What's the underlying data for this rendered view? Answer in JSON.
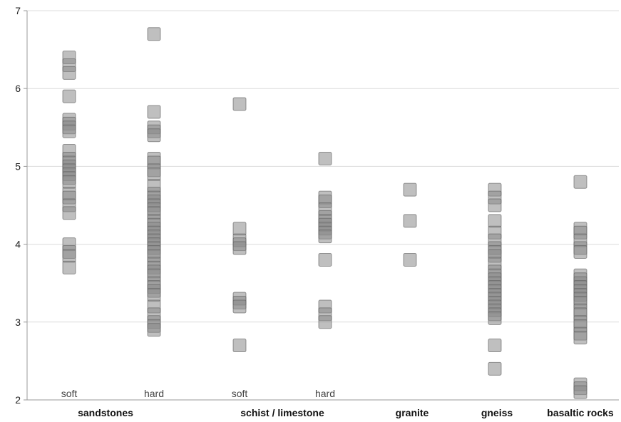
{
  "chart_data": {
    "type": "scatter",
    "ylim": [
      2,
      7
    ],
    "yticks": [
      "2",
      "3",
      "4",
      "5",
      "6",
      "7"
    ],
    "grid": "horizontal",
    "legend": "none",
    "colors": {
      "marker_fill": "#8a8a8a",
      "marker_stroke": "#5a5a5a",
      "grid": "#dcdcdc",
      "axis": "#9a9a9a"
    },
    "categories": [
      {
        "sub_label": "soft",
        "y": [
          6.4,
          6.3,
          6.2,
          5.9,
          5.6,
          5.55,
          5.5,
          5.45,
          5.2,
          5.1,
          5.05,
          5.0,
          4.95,
          4.9,
          4.85,
          4.8,
          4.65,
          4.6,
          4.5,
          4.4,
          4.0,
          3.9,
          3.85,
          3.7
        ]
      },
      {
        "sub_label": "hard",
        "y": [
          6.7,
          5.7,
          5.5,
          5.45,
          5.4,
          5.1,
          5.05,
          4.95,
          4.9,
          4.75,
          4.65,
          4.6,
          4.55,
          4.5,
          4.45,
          4.4,
          4.3,
          4.25,
          4.2,
          4.15,
          4.1,
          4.05,
          4.0,
          3.95,
          3.9,
          3.85,
          3.75,
          3.7,
          3.65,
          3.6,
          3.5,
          3.45,
          3.4,
          3.35,
          3.2,
          3.1,
          3.0,
          2.95,
          2.9
        ]
      },
      {
        "sub_label": "soft",
        "y": [
          5.8,
          4.2,
          4.05,
          4.0,
          3.95,
          3.3,
          3.25,
          3.2,
          2.7
        ]
      },
      {
        "sub_label": "hard",
        "y": [
          5.1,
          4.6,
          4.55,
          4.45,
          4.35,
          4.3,
          4.25,
          4.2,
          4.15,
          4.1,
          3.8,
          3.2,
          3.1,
          3.0
        ]
      },
      {
        "sub_label": "",
        "y": [
          4.7,
          4.3,
          3.8
        ]
      },
      {
        "sub_label": "",
        "y": [
          4.7,
          4.6,
          4.5,
          4.3,
          4.15,
          4.05,
          3.95,
          3.9,
          3.85,
          3.75,
          3.65,
          3.6,
          3.55,
          3.5,
          3.45,
          3.4,
          3.35,
          3.3,
          3.25,
          3.2,
          3.15,
          3.1,
          3.05,
          2.7,
          2.4
        ]
      },
      {
        "sub_label": "",
        "y": [
          4.8,
          4.2,
          4.15,
          4.05,
          3.95,
          3.9,
          3.6,
          3.55,
          3.5,
          3.45,
          3.4,
          3.35,
          3.3,
          3.25,
          3.15,
          3.1,
          3.0,
          2.95,
          2.85,
          2.8,
          2.2,
          2.15,
          2.1
        ]
      }
    ],
    "groups": [
      "sandstones",
      "schist / limestone",
      "granite",
      "gneiss",
      "basaltic rocks"
    ]
  }
}
